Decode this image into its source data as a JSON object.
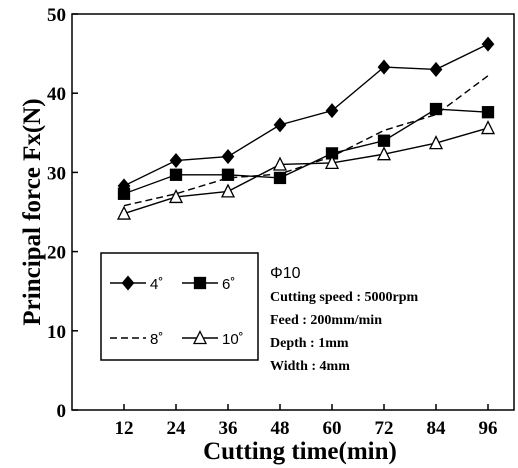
{
  "chart_data": {
    "type": "line",
    "title": "",
    "xlabel": "Cutting time(min)",
    "ylabel": "Principal force  Fx(N)",
    "x": [
      12,
      24,
      36,
      48,
      60,
      72,
      84,
      96
    ],
    "xlim": [
      0,
      102
    ],
    "ylim": [
      0,
      50
    ],
    "x_ticks": [
      "12",
      "24",
      "36",
      "48",
      "60",
      "72",
      "84",
      "96"
    ],
    "y_ticks": [
      "0",
      "10",
      "20",
      "30",
      "40",
      "50"
    ],
    "grid": false,
    "legend_position": "bottom-left",
    "series": [
      {
        "name": "4˚",
        "marker": "diamond",
        "dash": "solid",
        "values": [
          28.3,
          31.5,
          32.0,
          36.0,
          37.8,
          43.3,
          43.0,
          46.2
        ]
      },
      {
        "name": "6˚",
        "marker": "square",
        "dash": "solid",
        "values": [
          27.3,
          29.7,
          29.7,
          29.3,
          32.4,
          34.0,
          38.0,
          37.6
        ]
      },
      {
        "name": "8˚",
        "marker": "none",
        "dash": "dashed",
        "values": [
          25.8,
          27.3,
          29.3,
          29.8,
          32.0,
          35.3,
          37.3,
          42.2
        ]
      },
      {
        "name": "10˚",
        "marker": "triangle-open",
        "dash": "solid",
        "values": [
          24.8,
          26.9,
          27.6,
          31.0,
          31.2,
          32.3,
          33.7,
          35.6
        ]
      }
    ],
    "annotation": {
      "heading": "Φ10",
      "lines": [
        "Cutting speed : 5000rpm",
        "Feed : 200mm/min",
        "Depth : 1mm",
        "Width : 4mm"
      ]
    }
  }
}
